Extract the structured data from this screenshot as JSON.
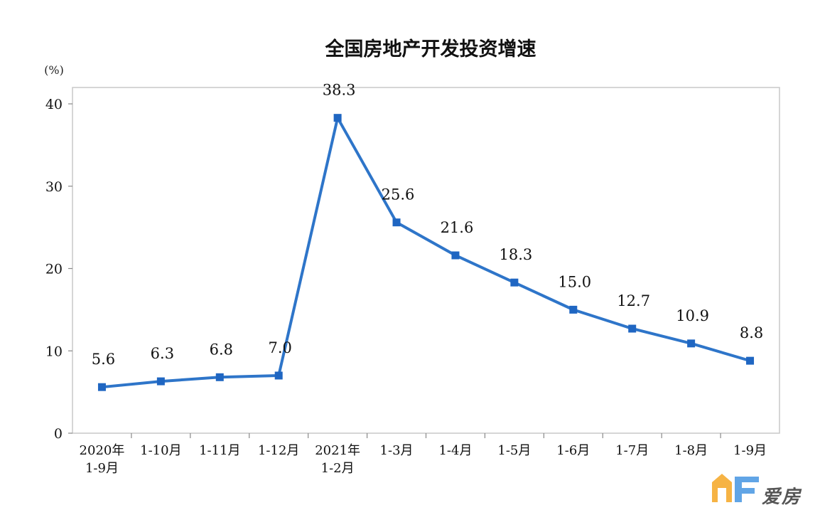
{
  "chart_data": {
    "type": "line",
    "title": "全国房地产开发投资增速",
    "y_unit": "(%)",
    "ylim": [
      0,
      40
    ],
    "yticks": [
      "0",
      "10",
      "20",
      "30",
      "40"
    ],
    "categories": [
      [
        "2020年",
        "1-9月"
      ],
      [
        "1-10月"
      ],
      [
        "1-11月"
      ],
      [
        "1-12月"
      ],
      [
        "2021年",
        "1-2月"
      ],
      [
        "1-3月"
      ],
      [
        "1-4月"
      ],
      [
        "1-5月"
      ],
      [
        "1-6月"
      ],
      [
        "1-7月"
      ],
      [
        "1-8月"
      ],
      [
        "1-9月"
      ]
    ],
    "values": [
      5.6,
      6.3,
      6.8,
      7.0,
      38.3,
      25.6,
      21.6,
      18.3,
      15.0,
      12.7,
      10.9,
      8.8
    ],
    "labels": [
      "5.6",
      "6.3",
      "6.8",
      "7.0",
      "38.3",
      "25.6",
      "21.6",
      "18.3",
      "15.0",
      "12.7",
      "10.9",
      "8.8"
    ],
    "grid": false,
    "legend": "none",
    "color": "#2e75c9"
  },
  "watermark": {
    "text": "爱房",
    "colors": [
      "#f5a623",
      "#3a8fe0"
    ]
  }
}
